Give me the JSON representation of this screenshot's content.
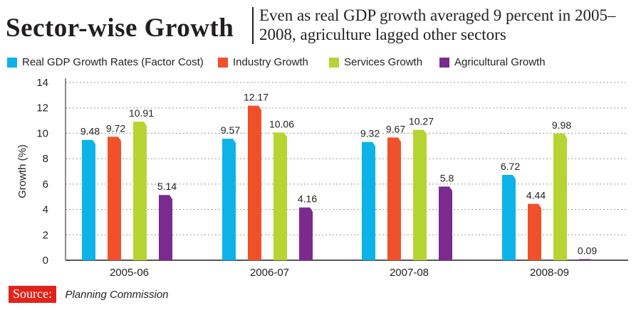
{
  "header": {
    "title": "Sector-wise Growth",
    "subtitle": "Even as real GDP growth averaged 9 percent in 2005–2008, agriculture lagged other sectors"
  },
  "footer": {
    "source_label": "Source:",
    "source_value": "Planning Commission"
  },
  "chart_data": {
    "type": "bar",
    "title": "Sector-wise Growth",
    "xlabel": "",
    "ylabel": "Growth (%)",
    "ylim": [
      0,
      14
    ],
    "yticks": [
      0,
      2,
      4,
      6,
      8,
      10,
      12,
      14
    ],
    "grid": true,
    "legend_position": "top",
    "categories": [
      "2005-06",
      "2006-07",
      "2007-08",
      "2008-09"
    ],
    "series": [
      {
        "name": "Real GDP Growth Rates (Factor Cost)",
        "color": "#0db3e8",
        "values": [
          9.48,
          9.57,
          9.32,
          6.72
        ],
        "labels": [
          "9.48",
          "9.57",
          "9.32",
          "6.72"
        ]
      },
      {
        "name": "Industry Growth",
        "color": "#f0512b",
        "values": [
          9.72,
          12.17,
          9.67,
          4.44
        ],
        "labels": [
          "9.72",
          "12.17",
          "9.67",
          "4.44"
        ]
      },
      {
        "name": "Services Growth",
        "color": "#b6d432",
        "values": [
          10.91,
          10.06,
          10.27,
          9.98
        ],
        "labels": [
          "10.91",
          "10.06",
          "10.27",
          "9.98"
        ]
      },
      {
        "name": "Agricultural Growth",
        "color": "#7b2a8e",
        "values": [
          5.14,
          4.16,
          5.8,
          0.09
        ],
        "labels": [
          "5.14",
          "4.16",
          "5.8",
          "0.09"
        ]
      }
    ]
  }
}
